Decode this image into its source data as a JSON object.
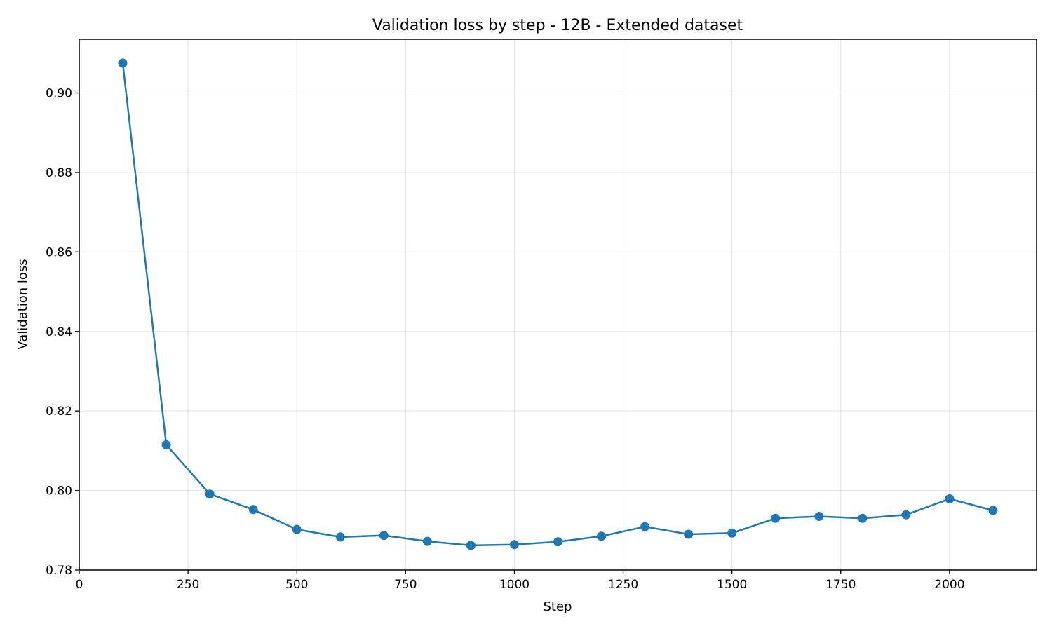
{
  "chart_data": {
    "type": "line",
    "title": "Validation loss by step - 12B - Extended dataset",
    "xlabel": "Step",
    "ylabel": "Validation loss",
    "xlim": [
      0,
      2200
    ],
    "ylim": [
      0.78,
      0.9135
    ],
    "xticks": [
      0,
      250,
      500,
      750,
      1000,
      1250,
      1500,
      1750,
      2000
    ],
    "yticks": [
      0.78,
      0.8,
      0.82,
      0.84,
      0.86,
      0.88,
      0.9
    ],
    "ytick_labels": [
      "0.78",
      "0.80",
      "0.82",
      "0.84",
      "0.86",
      "0.88",
      "0.90"
    ],
    "grid": true,
    "color": "#1f77b4",
    "series": [
      {
        "x": [
          100,
          200,
          300,
          400,
          500,
          600,
          700,
          800,
          900,
          1000,
          1100,
          1200,
          1300,
          1400,
          1500,
          1600,
          1700,
          1800,
          1900,
          2000,
          2100
        ],
        "values": [
          0.9075,
          0.8115,
          0.7991,
          0.7952,
          0.7902,
          0.7883,
          0.7887,
          0.7872,
          0.7862,
          0.7864,
          0.7871,
          0.7885,
          0.7909,
          0.789,
          0.7893,
          0.793,
          0.7935,
          0.793,
          0.7939,
          0.7979,
          0.795
        ]
      }
    ]
  }
}
